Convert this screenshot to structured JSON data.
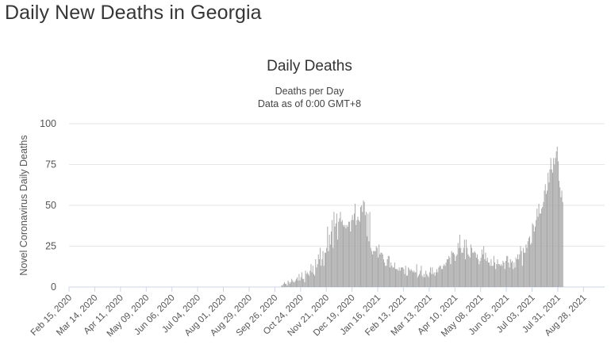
{
  "page": {
    "heading": "Daily New Deaths in Georgia"
  },
  "chart_data": {
    "type": "bar",
    "title": "Daily Deaths",
    "subtitle_lines": [
      "Deaths per Day",
      "Data as of 0:00 GMT+8"
    ],
    "ylabel": "Novel Coronavirus Daily Deaths",
    "xlabel": "",
    "ylim": [
      0,
      100
    ],
    "yticks": [
      0,
      25,
      50,
      75,
      100
    ],
    "grid": true,
    "legend": "none",
    "bar_color": "#a6a6a6",
    "x_start": "2020-02-15",
    "x_end": "2021-09-20",
    "x_tick_labels": [
      "Feb 15, 2020",
      "Mar 14, 2020",
      "Apr 11, 2020",
      "May 09, 2020",
      "Jun 06, 2020",
      "Jul 04, 2020",
      "Aug 01, 2020",
      "Aug 29, 2020",
      "Sep 26, 2020",
      "Oct 24, 2020",
      "Nov 21, 2020",
      "Dec 19, 2020",
      "Jan 16, 2021",
      "Feb 13, 2021",
      "Mar 13, 2021",
      "Apr 10, 2021",
      "May 08, 2021",
      "Jun 05, 2021",
      "Jul 03, 2021",
      "Jul 31, 2021",
      "Aug 28, 2021"
    ],
    "series": [
      {
        "values": [
          0,
          0,
          0,
          0,
          0,
          0,
          0,
          0,
          0,
          0,
          0,
          0,
          0,
          0,
          0,
          0,
          0,
          0,
          0,
          0,
          0,
          0,
          0,
          0,
          0,
          0,
          0,
          0,
          0,
          0,
          0,
          0,
          0,
          0,
          0,
          0,
          0,
          0,
          0,
          0,
          0,
          0,
          0,
          0,
          0,
          0,
          0,
          0,
          0,
          0,
          0,
          0,
          0,
          0,
          0,
          0,
          0,
          0,
          0,
          0,
          0,
          0,
          0,
          0,
          0,
          0,
          0,
          0,
          0,
          0,
          0,
          0,
          0,
          0,
          0,
          0,
          0,
          0,
          0,
          0,
          0,
          0,
          0,
          0,
          0,
          0,
          0,
          0,
          0,
          0,
          0,
          0,
          0,
          0,
          0,
          0,
          0,
          0,
          0,
          0,
          0,
          0,
          0,
          0,
          0,
          0,
          0,
          0,
          0,
          0,
          0,
          0,
          0,
          0,
          0,
          0,
          0,
          0,
          0,
          0,
          0,
          0,
          0,
          0,
          0,
          0,
          0,
          0,
          0,
          0,
          0,
          0,
          0,
          0,
          0,
          0,
          0,
          0,
          0,
          0,
          0,
          0,
          0,
          0,
          0,
          0,
          0,
          0,
          0,
          0,
          0,
          0,
          0,
          0,
          0,
          0,
          0,
          0,
          0,
          0,
          0,
          0,
          0,
          0,
          0,
          0,
          0,
          0,
          0,
          0,
          0,
          0,
          0,
          0,
          0,
          0,
          0,
          0,
          0,
          0,
          0,
          0,
          0,
          0,
          0,
          0,
          0,
          0,
          0,
          0,
          0,
          0,
          0,
          0,
          0,
          0,
          0,
          0,
          0,
          0,
          0,
          0,
          0,
          0,
          0,
          0,
          0,
          0,
          0,
          0,
          0,
          0,
          0,
          0,
          0,
          0,
          0,
          0,
          0,
          0,
          0,
          0,
          0,
          0,
          0,
          0,
          0,
          0,
          0,
          0,
          0,
          1,
          1,
          2,
          3,
          2,
          2,
          1,
          4,
          3,
          2,
          3,
          5,
          4,
          3,
          3,
          4,
          5,
          6,
          4,
          8,
          4,
          6,
          9,
          5,
          5,
          3,
          10,
          8,
          9,
          8,
          7,
          10,
          14,
          9,
          13,
          8,
          7,
          17,
          12,
          14,
          20,
          17,
          24,
          13,
          17,
          22,
          13,
          21,
          21,
          24,
          37,
          22,
          32,
          26,
          34,
          41,
          24,
          46,
          37,
          39,
          45,
          29,
          40,
          42,
          46,
          40,
          41,
          38,
          37,
          38,
          36,
          38,
          37,
          40,
          40,
          34,
          41,
          44,
          41,
          45,
          51,
          38,
          41,
          43,
          41,
          40,
          49,
          50,
          46,
          53,
          52,
          44,
          46,
          31,
          45,
          28,
          46,
          24,
          22,
          20,
          22,
          22,
          22,
          25,
          24,
          18,
          26,
          20,
          21,
          21,
          20,
          17,
          15,
          13,
          13,
          17,
          19,
          19,
          12,
          15,
          13,
          12,
          12,
          15,
          11,
          11,
          11,
          10,
          12,
          10,
          12,
          12,
          12,
          11,
          8,
          13,
          7,
          7,
          12,
          11,
          10,
          11,
          10,
          9,
          10,
          9,
          9,
          14,
          6,
          7,
          8,
          10,
          13,
          7,
          6,
          8,
          6,
          10,
          8,
          7,
          6,
          9,
          12,
          8,
          12,
          8,
          9,
          7,
          9,
          11,
          9,
          12,
          13,
          13,
          11,
          11,
          13,
          14,
          13,
          15,
          17,
          17,
          19,
          18,
          14,
          22,
          21,
          21,
          20,
          16,
          19,
          20,
          27,
          24,
          32,
          24,
          21,
          21,
          24,
          29,
          17,
          29,
          24,
          20,
          19,
          18,
          26,
          24,
          21,
          21,
          22,
          21,
          18,
          20,
          17,
          14,
          16,
          18,
          23,
          20,
          25,
          17,
          21,
          16,
          18,
          15,
          15,
          13,
          17,
          13,
          13,
          19,
          15,
          11,
          14,
          17,
          14,
          14,
          13,
          14,
          13,
          16,
          15,
          11,
          16,
          19,
          19,
          15,
          12,
          17,
          15,
          16,
          11,
          15,
          12,
          18,
          17,
          20,
          17,
          20,
          25,
          22,
          13,
          24,
          21,
          21,
          26,
          24,
          28,
          30,
          31,
          26,
          27,
          39,
          38,
          34,
          37,
          41,
          48,
          43,
          51,
          45,
          45,
          48,
          49,
          52,
          59,
          63,
          57,
          59,
          70,
          64,
          72,
          79,
          72,
          70,
          79,
          75,
          79,
          83,
          86,
          77,
          65,
          61,
          55,
          59,
          52
        ]
      }
    ]
  }
}
